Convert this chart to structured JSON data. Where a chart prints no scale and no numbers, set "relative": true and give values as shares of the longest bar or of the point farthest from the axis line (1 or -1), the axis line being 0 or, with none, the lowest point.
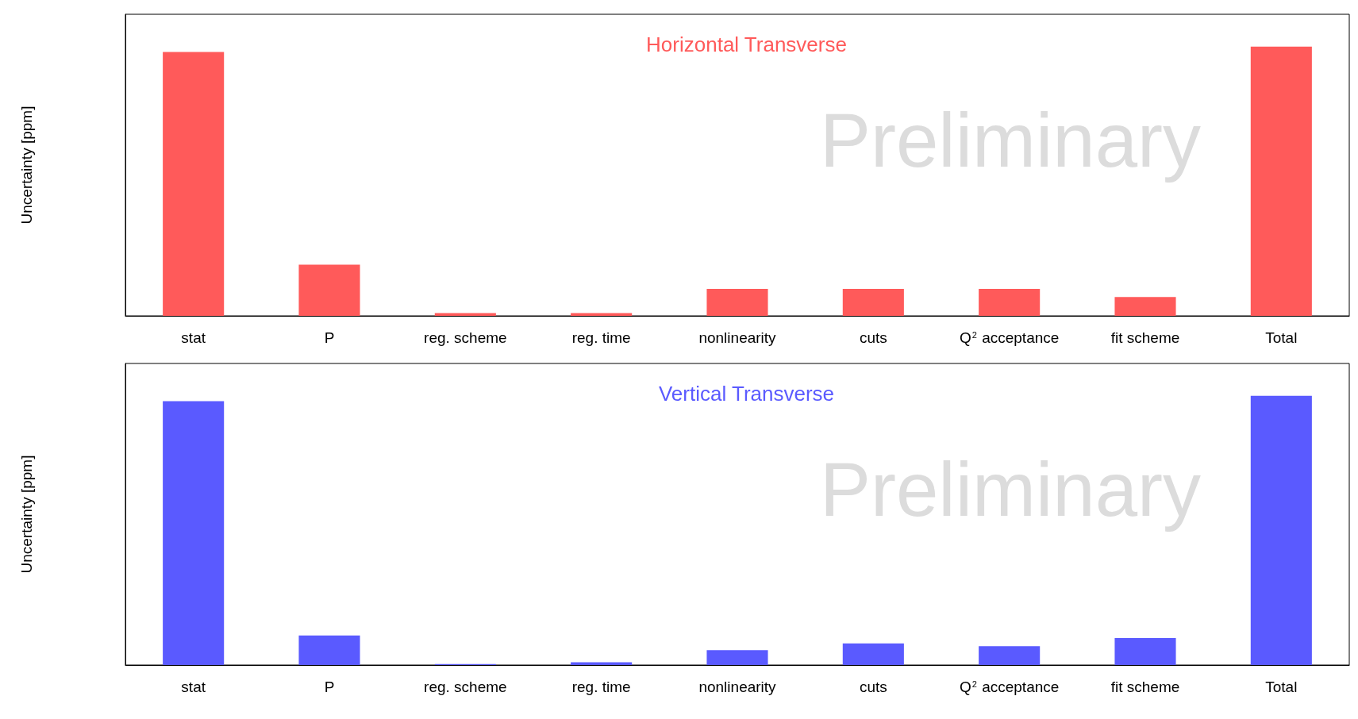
{
  "chart_data": [
    {
      "type": "bar",
      "title": "Horizontal Transverse",
      "ylabel": "Uncertainty [ppm]",
      "categories": [
        "stat",
        "P",
        "reg. scheme",
        "reg. time",
        "nonlinearity",
        "cuts",
        "Q$^{2}$ acceptance",
        "fit scheme",
        "Total"
      ],
      "values": [
        0.98,
        0.19,
        0.01,
        0.01,
        0.1,
        0.1,
        0.1,
        0.07,
        1
      ],
      "color": "#ff5a5a",
      "relative": true,
      "annotations": [
        "Preliminary"
      ]
    },
    {
      "type": "bar",
      "title": "Vertical Transverse",
      "ylabel": "Uncertainty [ppm]",
      "categories": [
        "stat",
        "P",
        "reg. scheme",
        "reg. time",
        "nonlinearity",
        "cuts",
        "Q$^{2}$ acceptance",
        "fit scheme",
        "Total"
      ],
      "values": [
        0.98,
        0.11,
        0.004,
        0.01,
        0.055,
        0.08,
        0.07,
        0.1,
        1
      ],
      "color": "#5a5aff",
      "relative": true,
      "annotations": [
        "Preliminary"
      ]
    }
  ]
}
